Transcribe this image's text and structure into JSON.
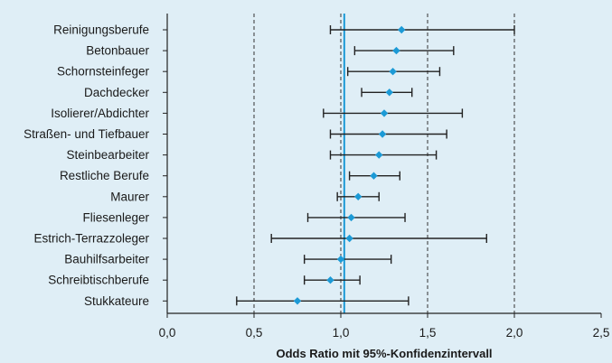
{
  "chart_data": {
    "type": "forest",
    "categories": [
      "Reinigungsberufe",
      "Betonbauer",
      "Schornsteinfeger",
      "Dachdecker",
      "Isolierer/Abdichter",
      "Straßen- und Tiefbauer",
      "Steinbearbeiter",
      "Restliche Berufe",
      "Maurer",
      "Fliesenleger",
      "Estrich-Terrazzoleger",
      "Bauhilfsarbeiter",
      "Schreibtischberufe",
      "Stukkateure"
    ],
    "estimates": [
      1.35,
      1.32,
      1.3,
      1.28,
      1.25,
      1.24,
      1.22,
      1.19,
      1.1,
      1.06,
      1.05,
      1.0,
      0.94,
      0.75
    ],
    "ci_lower": [
      0.94,
      1.08,
      1.04,
      1.12,
      0.9,
      0.94,
      0.94,
      1.05,
      0.98,
      0.81,
      0.6,
      0.79,
      0.79,
      0.4
    ],
    "ci_upper": [
      2.0,
      1.65,
      1.57,
      1.41,
      1.7,
      1.61,
      1.55,
      1.34,
      1.22,
      1.37,
      1.84,
      1.29,
      1.11,
      1.39
    ],
    "xlim": [
      0.0,
      2.5
    ],
    "xticks": [
      0.0,
      0.5,
      1.0,
      1.5,
      2.0,
      2.5
    ],
    "xtick_labels": [
      "0,0",
      "0,5",
      "1,0",
      "1,5",
      "2,0",
      "2,5"
    ],
    "reference_lines": [
      0.5,
      1.0,
      1.5,
      2.0
    ],
    "highlight_line": 1.02,
    "xlabel": "Odds Ratio mit 95%-Konfidenzintervall",
    "ylabel": "",
    "title": "",
    "colors": {
      "background": "#dfeef6",
      "marker": "#1c9ad6",
      "highlight_line": "#1c9ad6",
      "error_bar": "#222222",
      "axis": "#222222",
      "reference_line": "#333333"
    }
  }
}
